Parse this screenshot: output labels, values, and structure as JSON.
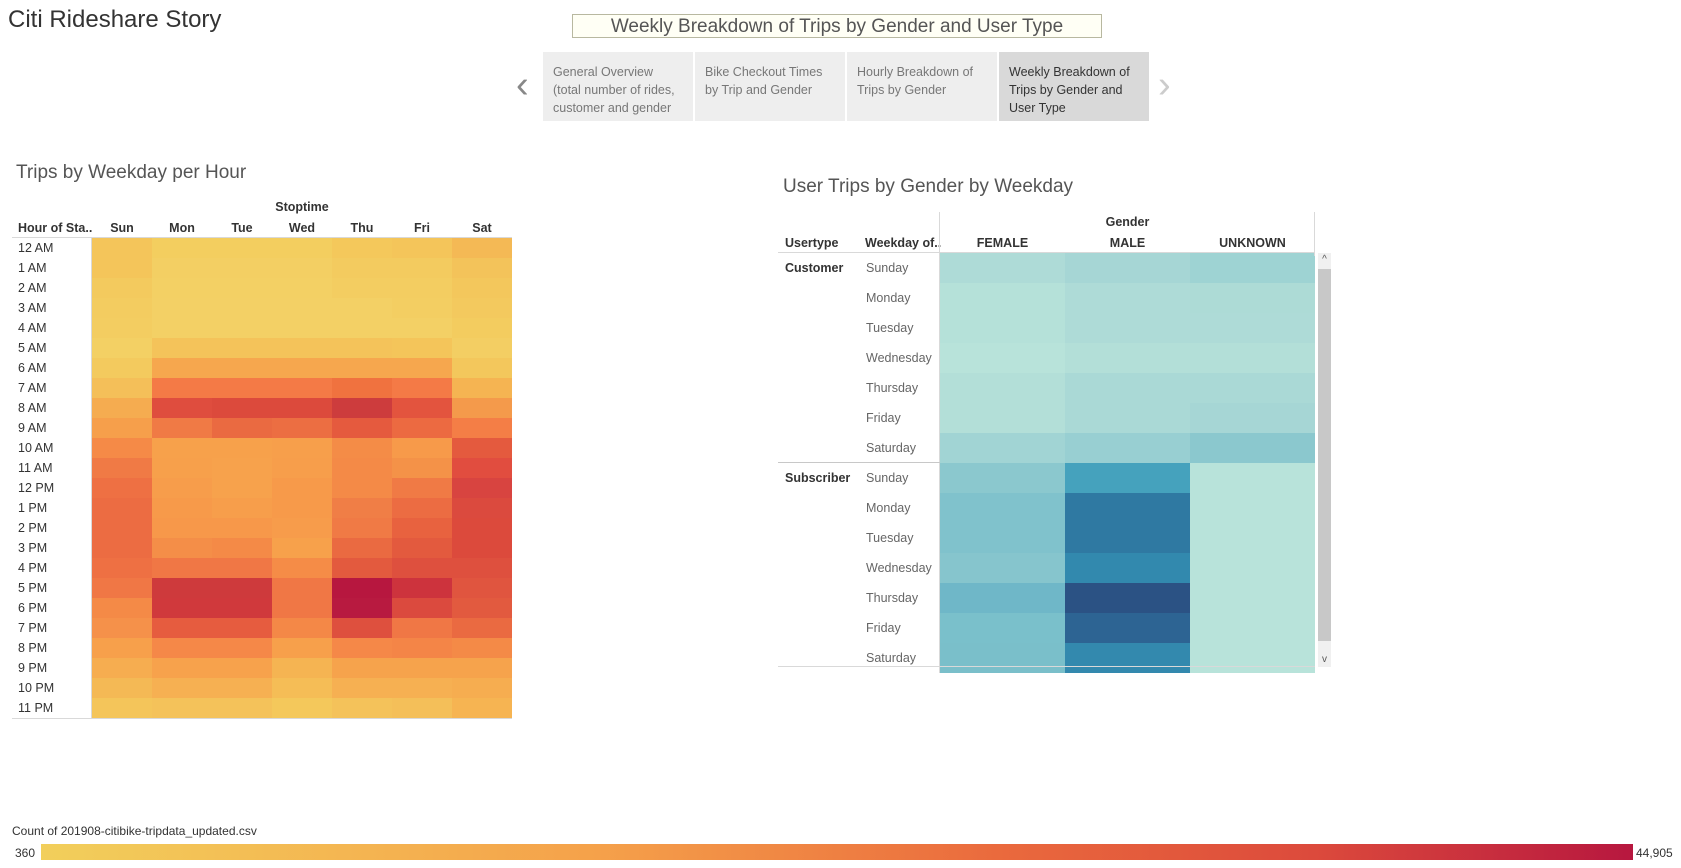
{
  "story": {
    "title": "Citi Rideshare Story",
    "caption": "Weekly Breakdown of Trips by Gender and User Type",
    "points": [
      {
        "label": "General Overview (total number of rides, customer and gender"
      },
      {
        "label": "Bike Checkout Times by Trip and Gender"
      },
      {
        "label": "Hourly Breakdown of Trips by Gender"
      },
      {
        "label": "Weekly  Breakdown of Trips by Gender and User Type"
      }
    ],
    "prev_icon": "‹",
    "next_icon": "›",
    "active_index": 3
  },
  "heatmap1": {
    "title": "Trips by Weekday per Hour",
    "column_group": "Stoptime",
    "row_header": "Hour of Sta..",
    "days": [
      "Sun",
      "Mon",
      "Tue",
      "Wed",
      "Thu",
      "Fri",
      "Sat"
    ],
    "hours": [
      "12 AM",
      "1 AM",
      "2 AM",
      "3 AM",
      "4 AM",
      "5 AM",
      "6 AM",
      "7 AM",
      "8 AM",
      "9 AM",
      "10 AM",
      "11 AM",
      "12 PM",
      "1 PM",
      "2 PM",
      "3 PM",
      "4 PM",
      "5 PM",
      "6 PM",
      "7 PM",
      "8 PM",
      "9 PM",
      "10 PM",
      "11 PM"
    ],
    "colors": [
      [
        "#f4c55a",
        "#f3ce5f",
        "#f3ce5f",
        "#f3ce5f",
        "#f4c85b",
        "#f4c55a",
        "#f4b955"
      ],
      [
        "#f4c55a",
        "#f3cf63",
        "#f3cf63",
        "#f3cf63",
        "#f3cb5f",
        "#f3cb5f",
        "#f3c35a"
      ],
      [
        "#f3ca5e",
        "#f3d064",
        "#f3d064",
        "#f3d064",
        "#f3cd61",
        "#f3cd61",
        "#f3c75c"
      ],
      [
        "#f3cc60",
        "#f3d065",
        "#f3d065",
        "#f3d065",
        "#f3d065",
        "#f3ce62",
        "#f3c95e"
      ],
      [
        "#f3cd61",
        "#f3d065",
        "#f3d065",
        "#f3d065",
        "#f3d065",
        "#f3d065",
        "#f3cc5f"
      ],
      [
        "#f3d064",
        "#f4c35a",
        "#f4c35a",
        "#f4c35a",
        "#f4c35a",
        "#f4c55a",
        "#f3ce63"
      ],
      [
        "#f3ca5e",
        "#f6a74e",
        "#f6a74e",
        "#f6a74e",
        "#f6a74e",
        "#f6a74e",
        "#f3c75c"
      ],
      [
        "#f4bf59",
        "#f47a46",
        "#f47a46",
        "#f47a46",
        "#f0723f",
        "#f47a46",
        "#f5b452"
      ],
      [
        "#f5ac50",
        "#df4d3e",
        "#dc4a3c",
        "#dc4a3c",
        "#cd3c3d",
        "#e3543e",
        "#f49a4b"
      ],
      [
        "#f69f4b",
        "#f07a45",
        "#ea6a41",
        "#ec6e42",
        "#e55a3e",
        "#ec6a41",
        "#f47e46"
      ],
      [
        "#f58a47",
        "#f7a14b",
        "#f7a14b",
        "#f79f4b",
        "#f48c47",
        "#f79a4a",
        "#e45a3e"
      ],
      [
        "#f07a45",
        "#f7a04b",
        "#f7a24c",
        "#f79e4b",
        "#f48a47",
        "#f49248",
        "#e14d3f"
      ],
      [
        "#ee7043",
        "#f79d4b",
        "#f7a24c",
        "#f79a4a",
        "#f48a47",
        "#f07a45",
        "#d84440"
      ],
      [
        "#ec6c42",
        "#f79a4a",
        "#f79e4b",
        "#f79a4a",
        "#f07e46",
        "#ec6c42",
        "#db4a3e"
      ],
      [
        "#ec6c42",
        "#f7984a",
        "#f7984a",
        "#f79c4b",
        "#f07a45",
        "#e8623f",
        "#dc4a3c"
      ],
      [
        "#ec6c42",
        "#f48e48",
        "#f48a47",
        "#f7a14b",
        "#ea6a41",
        "#e35a3e",
        "#dc4a3c"
      ],
      [
        "#ee7043",
        "#f07745",
        "#f07745",
        "#f58c47",
        "#e35a3e",
        "#de503e",
        "#de503e"
      ],
      [
        "#f07745",
        "#ce3a3c",
        "#ce3a3c",
        "#f07745",
        "#b7173f",
        "#cd333d",
        "#e0553f"
      ],
      [
        "#f48a47",
        "#d0393c",
        "#d0393c",
        "#f07745",
        "#b81a40",
        "#db4a3e",
        "#e25a3f"
      ],
      [
        "#f5914a",
        "#e65c3f",
        "#e65c3f",
        "#f48847",
        "#de503e",
        "#f07745",
        "#ea6a41"
      ],
      [
        "#f7a04b",
        "#f58848",
        "#f58848",
        "#f7a04b",
        "#f58848",
        "#f48547",
        "#f48a47"
      ],
      [
        "#f6ad50",
        "#f7a24c",
        "#f7a24c",
        "#f5b452",
        "#f6a34c",
        "#f6a34c",
        "#f6a34c"
      ],
      [
        "#f4b955",
        "#f6b052",
        "#f6b052",
        "#f5bd56",
        "#f6b052",
        "#f6b052",
        "#f6ad50"
      ],
      [
        "#f4c55a",
        "#f4c25a",
        "#f4c25a",
        "#f4c85b",
        "#f4c25a",
        "#f4bf59",
        "#f6b452"
      ]
    ]
  },
  "heatmap2": {
    "title": "User Trips by Gender by Weekday",
    "column_group": "Gender",
    "col_headers": {
      "usertype": "Usertype",
      "weekday": "Weekday of.."
    },
    "genders": [
      "FEMALE",
      "MALE",
      "UNKNOWN"
    ],
    "groups": [
      {
        "usertype": "Customer",
        "days": [
          "Sunday",
          "Monday",
          "Tuesday",
          "Wednesday",
          "Thursday",
          "Friday",
          "Saturday"
        ],
        "colors": [
          [
            "#aedbd7",
            "#a6d6d5",
            "#9ed3d3"
          ],
          [
            "#b5e1d9",
            "#aedbd7",
            "#addbd6"
          ],
          [
            "#b5e1d9",
            "#aedbd7",
            "#aedbd7"
          ],
          [
            "#b8e3da",
            "#b3dfd8",
            "#b3dfd8"
          ],
          [
            "#b3dfd8",
            "#aad9d6",
            "#aad9d6"
          ],
          [
            "#b3dfd8",
            "#aad9d6",
            "#a6d6d5"
          ],
          [
            "#a1d4d4",
            "#98cfd2",
            "#8bc8ce"
          ]
        ]
      },
      {
        "usertype": "Subscriber",
        "days": [
          "Sunday",
          "Monday",
          "Tuesday",
          "Wednesday",
          "Thursday",
          "Friday",
          "Saturday"
        ],
        "colors": [
          [
            "#8bc8ce",
            "#45a2bd",
            "#b8e3da"
          ],
          [
            "#80c2cc",
            "#2f79a2",
            "#b8e3da"
          ],
          [
            "#80c2cc",
            "#2f79a2",
            "#b8e3da"
          ],
          [
            "#86c5cd",
            "#3289ae",
            "#b8e3da"
          ],
          [
            "#6fb7c8",
            "#2b5284",
            "#b8e3da"
          ],
          [
            "#7ac0cb",
            "#2d6493",
            "#b8e3da"
          ],
          [
            "#7abfca",
            "#3389ae",
            "#b8e3da"
          ]
        ]
      }
    ]
  },
  "legend": {
    "title": "Count of 201908-citibike-tripdata_updated.csv",
    "min": "360",
    "max": "44,905"
  },
  "scroll_icons": {
    "up": "^",
    "down": "v"
  }
}
